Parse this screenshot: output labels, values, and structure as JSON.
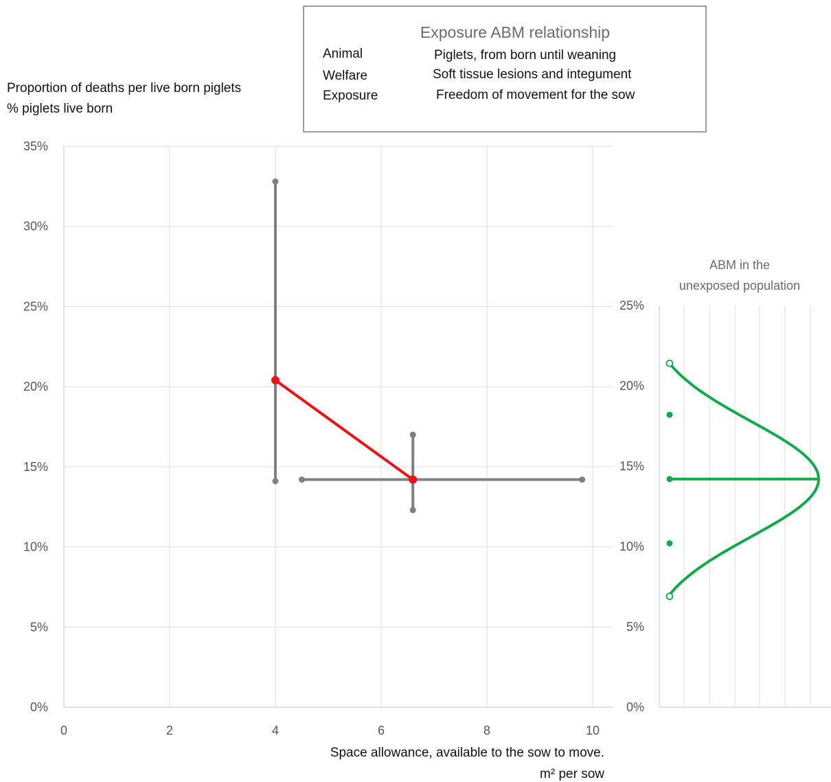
{
  "info_box": {
    "title": "Exposure ABM relationship",
    "rows": [
      {
        "key": "Animal",
        "value": "Piglets, from born until weaning"
      },
      {
        "key": "Welfare",
        "value": "Soft tissue lesions and integument"
      },
      {
        "key": "Exposure",
        "value": "Freedom of movement for the sow"
      }
    ]
  },
  "colors": {
    "relationship": "#ee1111",
    "interval": "#808080",
    "distribution": "#11aa4a",
    "grid": "#dddddd"
  },
  "chart_data": [
    {
      "type": "line",
      "ylabel_lines": [
        "Proportion of deaths per live born piglets",
        "% piglets live born"
      ],
      "xlabel_lines": [
        "Space allowance, available to the sow to move.",
        "m² per sow"
      ],
      "xlim": [
        0,
        10
      ],
      "ylim": [
        0,
        0.35
      ],
      "x_ticks": [
        0,
        2,
        4,
        6,
        8,
        10
      ],
      "x_tick_labels": [
        "0",
        "2",
        "4",
        "6",
        "8",
        "10"
      ],
      "y_ticks": [
        0,
        0.05,
        0.1,
        0.15,
        0.2,
        0.25,
        0.3,
        0.35
      ],
      "y_tick_labels": [
        "0%",
        "5%",
        "10%",
        "15%",
        "20%",
        "25%",
        "30%",
        "35%"
      ],
      "grid": true,
      "relationship": [
        {
          "x": 4.0,
          "y": 0.204
        },
        {
          "x": 6.6,
          "y": 0.142
        }
      ],
      "intervals": [
        {
          "orientation": "vertical",
          "x": 4.0,
          "from": 0.141,
          "to": 0.328
        },
        {
          "orientation": "vertical",
          "x": 6.6,
          "from": 0.123,
          "to": 0.17
        },
        {
          "orientation": "horizontal",
          "y": 0.142,
          "from": 4.5,
          "to": 9.8
        }
      ]
    },
    {
      "type": "line",
      "title_lines": [
        "ABM in the",
        "unexposed population"
      ],
      "ylim": [
        0,
        0.25
      ],
      "y_ticks": [
        0,
        0.05,
        0.1,
        0.15,
        0.2,
        0.25
      ],
      "y_tick_labels": [
        "0%",
        "5%",
        "10%",
        "15%",
        "20%",
        "25%"
      ],
      "grid": true,
      "distribution": {
        "mean": 0.142,
        "sd": 0.036
      },
      "curve_y_range": [
        0.069,
        0.214
      ],
      "dots": [
        {
          "y": 0.214,
          "hollow": true
        },
        {
          "y": 0.182,
          "hollow": false
        },
        {
          "y": 0.142,
          "hollow": false
        },
        {
          "y": 0.102,
          "hollow": false
        },
        {
          "y": 0.069,
          "hollow": true
        }
      ]
    }
  ]
}
